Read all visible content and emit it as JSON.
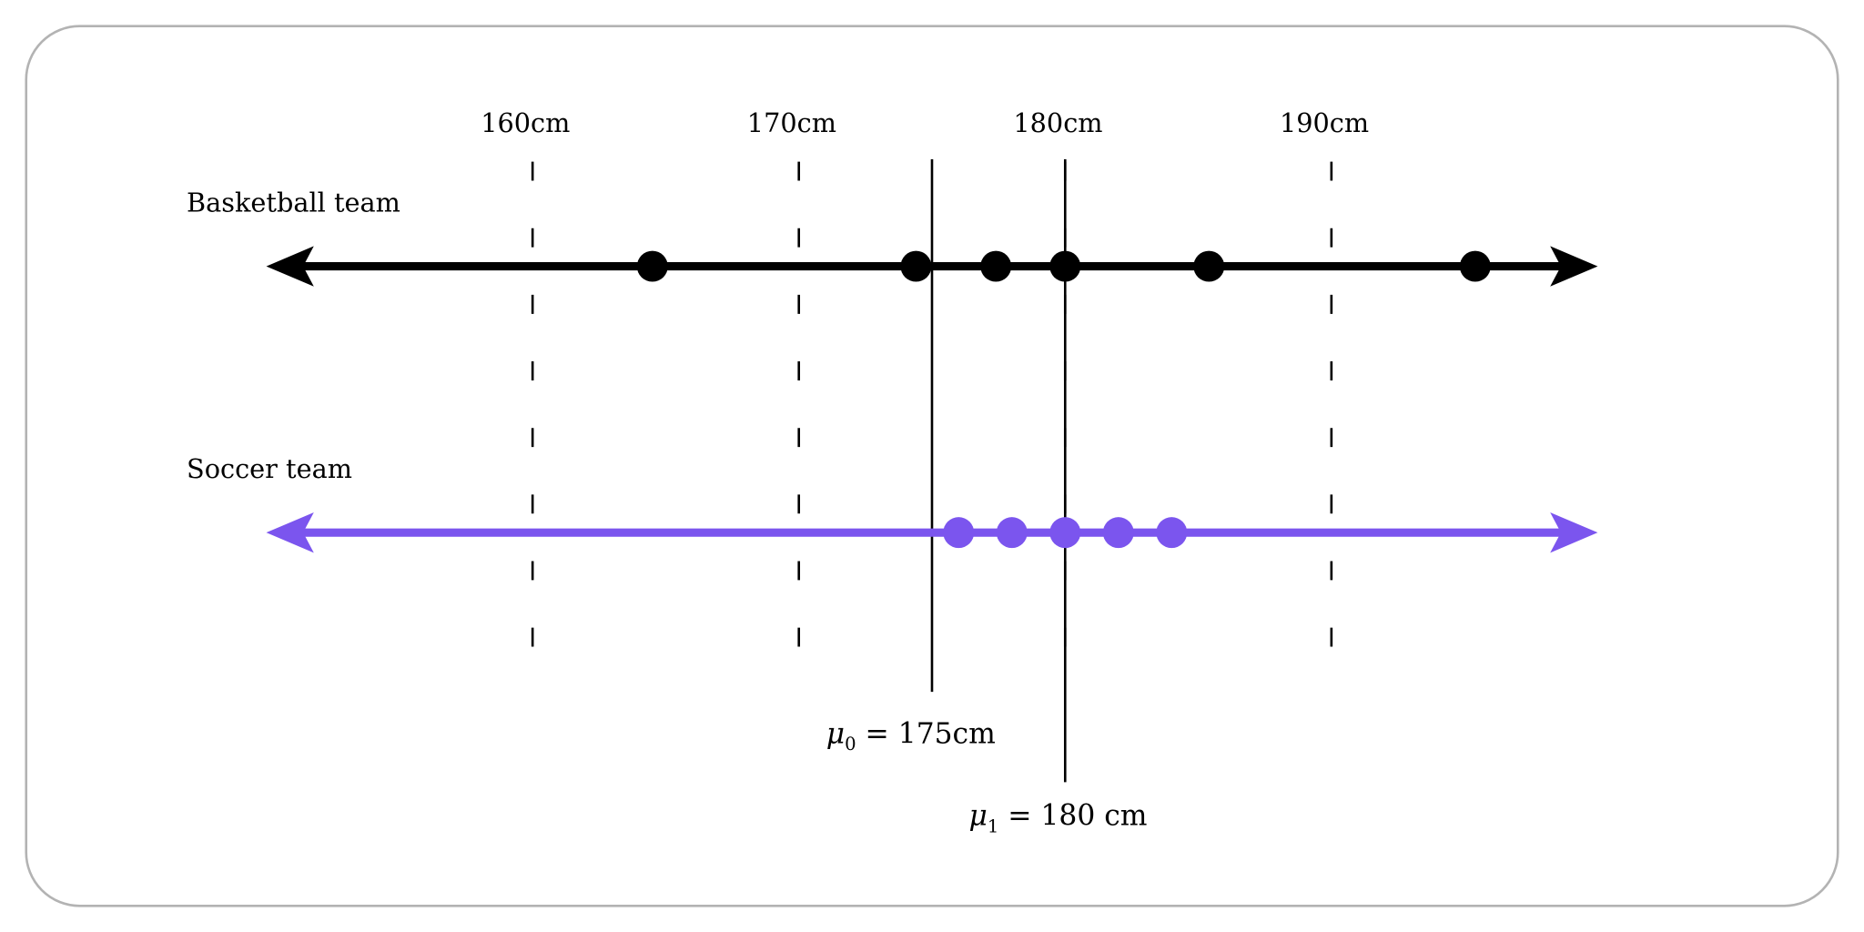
{
  "axis": {
    "ticks": [
      {
        "value": 160,
        "label": "160cm"
      },
      {
        "value": 170,
        "label": "170cm"
      },
      {
        "value": 180,
        "label": "180cm"
      },
      {
        "value": 190,
        "label": "190cm"
      }
    ],
    "grid_style": "dashed"
  },
  "rows": [
    {
      "label": "Basketball team",
      "color": "#000000",
      "values": [
        164.5,
        174.4,
        177.4,
        180,
        185.4,
        195.4
      ]
    },
    {
      "label": "Soccer team",
      "color": "#7B55EE",
      "values": [
        176,
        178,
        180,
        182,
        184
      ]
    }
  ],
  "means": [
    {
      "value": 175,
      "symbol": "μ",
      "subscript": "0",
      "text": " = 175cm"
    },
    {
      "value": 180,
      "symbol": "μ",
      "subscript": "1",
      "text": " = 180 cm"
    }
  ],
  "colors": {
    "frame": "#b3b3b3",
    "soccer": "#7B55EE",
    "basketball": "#000000"
  }
}
